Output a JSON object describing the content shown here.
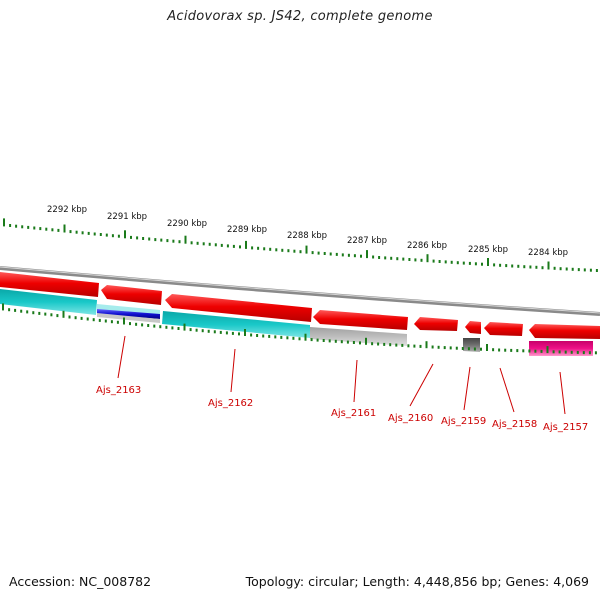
{
  "title": "Acidovorax sp. JS42, complete genome",
  "footer": {
    "accession": "Accession: NC_008782",
    "summary": "Topology: circular; Length: 4,448,856 bp; Genes: 4,069"
  },
  "scale_labels": [
    "2292 kbp",
    "2291 kbp",
    "2290 kbp",
    "2289 kbp",
    "2288 kbp",
    "2287 kbp",
    "2286 kbp",
    "2285 kbp",
    "2284 kbp"
  ],
  "gene_labels": [
    "Ajs_2163",
    "Ajs_2162",
    "Ajs_2161",
    "Ajs_2160",
    "Ajs_2159",
    "Ajs_2158",
    "Ajs_2157"
  ],
  "colors": {
    "cds": "#ee0000",
    "rna_track_cyan": "#19c8c8",
    "highlight_blue": "#1010d0",
    "pseudo_gray": "#bbbbbb",
    "dark_gray": "#666666",
    "magenta": "#ee1188",
    "tick_green": "#1a7a1a",
    "label_red": "#cc0000",
    "backbone": "#888888"
  }
}
